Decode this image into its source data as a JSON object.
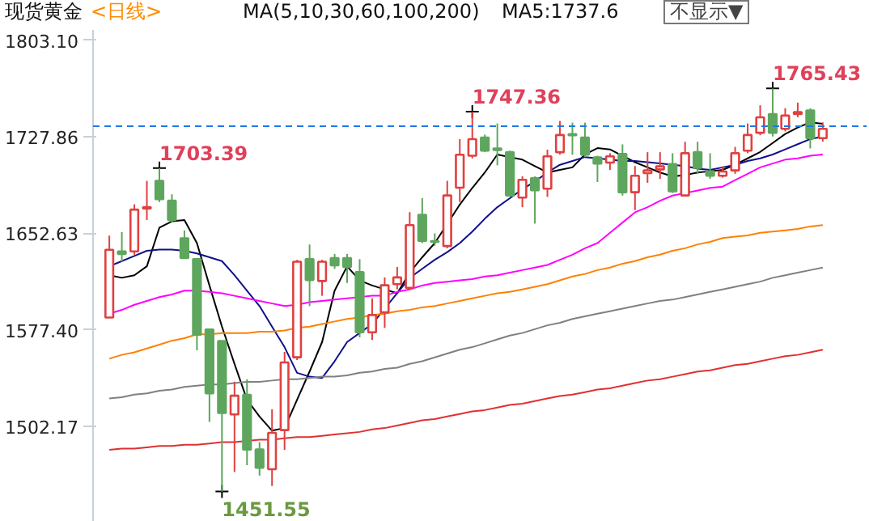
{
  "chart_data": {
    "type": "candlestick",
    "title": "现货黄金",
    "subtitle": "<日线>",
    "legend_title": "MA(5,10,30,60,100,200)",
    "categories": [
      null,
      null,
      null,
      null,
      null,
      null,
      null,
      null,
      null,
      null,
      null,
      null,
      null,
      null,
      null,
      null,
      null,
      null,
      null,
      null,
      null,
      null,
      null,
      null,
      null,
      null,
      null,
      null,
      null,
      null,
      null,
      null,
      null,
      null,
      null,
      null,
      null,
      null,
      null,
      null,
      null,
      null,
      null,
      null,
      null,
      null,
      null,
      null,
      null,
      null,
      null,
      null,
      null,
      null,
      null,
      null,
      null,
      null
    ],
    "ohlc": [
      [
        1587.1,
        1650.8,
        1587.1,
        1639.8
      ],
      [
        1638.6,
        1653.6,
        1630.5,
        1636.6
      ],
      [
        1638.6,
        1675.2,
        1636,
        1671.1
      ],
      [
        1672,
        1693.5,
        1663,
        1673
      ],
      [
        1693.5,
        1703.39,
        1677,
        1679.2
      ],
      [
        1678,
        1683,
        1661,
        1663
      ],
      [
        1648.8,
        1654.9,
        1633,
        1633.4
      ],
      [
        1632.5,
        1632.5,
        1561.5,
        1573.7
      ],
      [
        1577.7,
        1577.7,
        1505.8,
        1528.1
      ],
      [
        1568.8,
        1568.8,
        1451.55,
        1512.8
      ],
      [
        1511.6,
        1537.1,
        1466.8,
        1526.2
      ],
      [
        1526.9,
        1539,
        1472.1,
        1484.3
      ],
      [
        1484.3,
        1490,
        1464,
        1470.1
      ],
      [
        1468.9,
        1515.6,
        1455.9,
        1497.3
      ],
      [
        1499.4,
        1560.3,
        1484,
        1552.1
      ],
      [
        1556.1,
        1632,
        1554,
        1630.5
      ],
      [
        1632.5,
        1643.9,
        1596,
        1616.3
      ],
      [
        1615.5,
        1632,
        1604,
        1630.5
      ],
      [
        1633.4,
        1636.6,
        1625,
        1627.7
      ],
      [
        1633.4,
        1636.6,
        1614,
        1626.5
      ],
      [
        1622.4,
        1632.5,
        1571.6,
        1575.6
      ],
      [
        1575.6,
        1602,
        1569.6,
        1589
      ],
      [
        1591.1,
        1618.3,
        1579,
        1612.2
      ],
      [
        1613,
        1626.4,
        1609,
        1618.3
      ],
      [
        1610.2,
        1669.1,
        1610.2,
        1659
      ],
      [
        1667.1,
        1680,
        1645,
        1646.8
      ],
      [
        1646.5,
        1652.6,
        1643,
        1646
      ],
      [
        1642.7,
        1693.5,
        1641,
        1682.1
      ],
      [
        1688.2,
        1726,
        1677,
        1713.8
      ],
      [
        1713,
        1747.36,
        1711,
        1726
      ],
      [
        1727.2,
        1729.5,
        1716,
        1717
      ],
      [
        1718.7,
        1738.2,
        1705.6,
        1717.5
      ],
      [
        1715.8,
        1717,
        1682.1,
        1682.1
      ],
      [
        1680.4,
        1697,
        1673,
        1694.3
      ],
      [
        1695.5,
        1697,
        1660.2,
        1686.1
      ],
      [
        1687.4,
        1717.8,
        1681,
        1712.6
      ],
      [
        1715.8,
        1740.1,
        1714,
        1729.2
      ],
      [
        1729.8,
        1738.8,
        1713.8,
        1729
      ],
      [
        1727.2,
        1738.8,
        1712,
        1713.8
      ],
      [
        1711.7,
        1713,
        1692.6,
        1706.9
      ],
      [
        1707.7,
        1715,
        1702,
        1712.6
      ],
      [
        1714.5,
        1721.9,
        1682,
        1684.6
      ],
      [
        1684.6,
        1705,
        1670.7,
        1697.5
      ],
      [
        1699.5,
        1715.8,
        1692,
        1701.6
      ],
      [
        1702.4,
        1715.8,
        1695,
        1704.8
      ],
      [
        1706.5,
        1715,
        1684,
        1685.4
      ],
      [
        1682.1,
        1723.9,
        1682.1,
        1715
      ],
      [
        1715.8,
        1723.9,
        1699,
        1703.6
      ],
      [
        1700.8,
        1715,
        1695,
        1697.5
      ],
      [
        1697.5,
        1704.8,
        1696,
        1700.8
      ],
      [
        1701.6,
        1719.9,
        1699,
        1715
      ],
      [
        1717,
        1738.2,
        1715,
        1729.2
      ],
      [
        1730.9,
        1752.3,
        1729,
        1743
      ],
      [
        1745.5,
        1765.43,
        1728,
        1730.9
      ],
      [
        1734,
        1750,
        1732,
        1744.3
      ],
      [
        1745.5,
        1754.4,
        1743,
        1747
      ],
      [
        1748.3,
        1750,
        1718.7,
        1726.7
      ],
      [
        1726.7,
        1739,
        1724,
        1734
      ]
    ],
    "colors": [
      "#e04040",
      "#5ea65e",
      "#e04040",
      "#e04040",
      "#5ea65e",
      "#5ea65e",
      "#5ea65e",
      "#5ea65e",
      "#5ea65e",
      "#5ea65e",
      "#e04040",
      "#5ea65e",
      "#5ea65e",
      "#e04040",
      "#e04040",
      "#e04040",
      "#5ea65e",
      "#e04040",
      "#5ea65e",
      "#5ea65e",
      "#5ea65e",
      "#e04040",
      "#e04040",
      "#e04040",
      "#e04040",
      "#5ea65e",
      "#5ea65e",
      "#e04040",
      "#e04040",
      "#e04040",
      "#5ea65e",
      "#5ea65e",
      "#5ea65e",
      "#e04040",
      "#5ea65e",
      "#e04040",
      "#e04040",
      "#5ea65e",
      "#5ea65e",
      "#5ea65e",
      "#e04040",
      "#5ea65e",
      "#e04040",
      "#e04040",
      "#e04040",
      "#5ea65e",
      "#e04040",
      "#5ea65e",
      "#5ea65e",
      "#e04040",
      "#e04040",
      "#e04040",
      "#e04040",
      "#5ea65e",
      "#e04040",
      "#e04040",
      "#5ea65e",
      "#e04040"
    ],
    "series": [
      {
        "type": "line",
        "color": "#000000",
        "values": [
          1620,
          1618,
          1620,
          1627,
          1657,
          1662,
          1663,
          1645,
          1612,
          1580,
          1551,
          1523,
          1510,
          1499,
          1501,
          1523,
          1545,
          1568,
          1608,
          1627,
          1616,
          1612,
          1609,
          1606,
          1622,
          1634,
          1645,
          1660,
          1675,
          1688,
          1700,
          1714,
          1712,
          1710,
          1705,
          1700,
          1702,
          1704,
          1714,
          1719,
          1718,
          1713,
          1708,
          1704,
          1700,
          1697,
          1698,
          1700,
          1701,
          1702,
          1706,
          1711,
          1716,
          1723,
          1730,
          1735,
          1739,
          1738
        ]
      },
      {
        "type": "line",
        "color": "#10108c",
        "values": [
          1627,
          1631,
          1635,
          1639,
          1640,
          1640,
          1639,
          1637,
          1634,
          1631,
          1620,
          1608,
          1596,
          1580,
          1564,
          1544,
          1541,
          1540,
          1553,
          1568,
          1575,
          1582,
          1594,
          1606,
          1618,
          1625,
          1632,
          1638,
          1645,
          1654,
          1664,
          1673,
          1680,
          1687,
          1693,
          1700,
          1706,
          1709,
          1712,
          1711,
          1710,
          1709,
          1709,
          1708,
          1707,
          1706,
          1705,
          1703,
          1702,
          1704,
          1706,
          1709,
          1711,
          1714,
          1718,
          1722,
          1726,
          1728
        ]
      },
      {
        "type": "line",
        "color": "#ff00ff",
        "values": [
          1590,
          1593,
          1597,
          1600,
          1603,
          1605,
          1608,
          1608,
          1607,
          1606,
          1604,
          1602,
          1600,
          1598,
          1596,
          1597,
          1599,
          1600,
          1601,
          1602,
          1603,
          1604,
          1604,
          1607,
          1609,
          1612,
          1614,
          1615,
          1616,
          1617,
          1619,
          1620,
          1622,
          1624,
          1626,
          1628,
          1632,
          1636,
          1641,
          1645,
          1653,
          1661,
          1669,
          1673,
          1678,
          1682,
          1684,
          1686,
          1688,
          1689,
          1694,
          1699,
          1704,
          1707,
          1710,
          1711,
          1713,
          1714
        ]
      },
      {
        "type": "line",
        "color": "#ff8000",
        "values": [
          1555,
          1558,
          1560,
          1563,
          1566,
          1569,
          1571,
          1574,
          1574,
          1575,
          1575,
          1575,
          1576,
          1576,
          1577,
          1579,
          1580,
          1582,
          1584,
          1586,
          1587,
          1589,
          1590,
          1592,
          1593,
          1595,
          1596,
          1598,
          1600,
          1602,
          1604,
          1606,
          1607,
          1609,
          1611,
          1613,
          1616,
          1619,
          1621,
          1624,
          1626,
          1629,
          1631,
          1634,
          1636,
          1639,
          1641,
          1644,
          1646,
          1649,
          1650,
          1651,
          1653,
          1654,
          1655,
          1656,
          1658,
          1659
        ]
      },
      {
        "type": "line",
        "color": "#808080",
        "values": [
          1524,
          1525,
          1527,
          1528,
          1530,
          1531,
          1533,
          1534,
          1535,
          1535,
          1536,
          1537,
          1537,
          1538,
          1539,
          1539,
          1540,
          1541,
          1541,
          1542,
          1544,
          1545,
          1547,
          1548,
          1551,
          1553,
          1556,
          1559,
          1562,
          1564,
          1567,
          1570,
          1573,
          1575,
          1578,
          1581,
          1583,
          1586,
          1588,
          1590,
          1592,
          1594,
          1596,
          1598,
          1600,
          1601,
          1603,
          1605,
          1607,
          1609,
          1611,
          1613,
          1615,
          1618,
          1620,
          1622,
          1624,
          1626
        ]
      },
      {
        "type": "line",
        "color": "#e03030",
        "values": [
          1484,
          1485,
          1485,
          1486,
          1487,
          1487,
          1488,
          1488,
          1489,
          1490,
          1490,
          1491,
          1492,
          1492,
          1493,
          1494,
          1494,
          1495,
          1496,
          1497,
          1498,
          1500,
          1501,
          1503,
          1505,
          1507,
          1508,
          1510,
          1512,
          1514,
          1515,
          1517,
          1519,
          1520,
          1522,
          1524,
          1526,
          1527,
          1529,
          1531,
          1532,
          1534,
          1536,
          1538,
          1539,
          1541,
          1543,
          1545,
          1546,
          1548,
          1550,
          1551,
          1553,
          1555,
          1557,
          1558,
          1560,
          1562
        ]
      }
    ],
    "value_labels": [
      null,
      null,
      null,
      null,
      "1703.39",
      null,
      null,
      null,
      null,
      "1451.55",
      null,
      null,
      null,
      null,
      null,
      null,
      null,
      null,
      null,
      null,
      null,
      null,
      null,
      null,
      null,
      null,
      null,
      null,
      null,
      "1747.36",
      null,
      null,
      null,
      null,
      null,
      null,
      null,
      null,
      null,
      null,
      null,
      null,
      null,
      null,
      null,
      null,
      null,
      null,
      null,
      null,
      null,
      null,
      null,
      "1765.43",
      null,
      null,
      null,
      null
    ],
    "ylim": [
      1428,
      1811
    ],
    "yticks": [
      {
        "value": 1502.17,
        "label": "1502.17"
      },
      {
        "value": 1577.4,
        "label": "1577.40"
      },
      {
        "value": 1652.63,
        "label": "1652.63"
      },
      {
        "value": 1727.86,
        "label": "1727.86"
      },
      {
        "value": 1803.1,
        "label": "1803.10"
      }
    ],
    "ref_lines": [
      {
        "axis": "y",
        "value": 1736,
        "color": "#1e78e6",
        "line_style": "dashed"
      }
    ],
    "annotations": [
      "MA5:1737.6",
      "不显示▼"
    ],
    "tick_labels": "y",
    "grid": false
  }
}
